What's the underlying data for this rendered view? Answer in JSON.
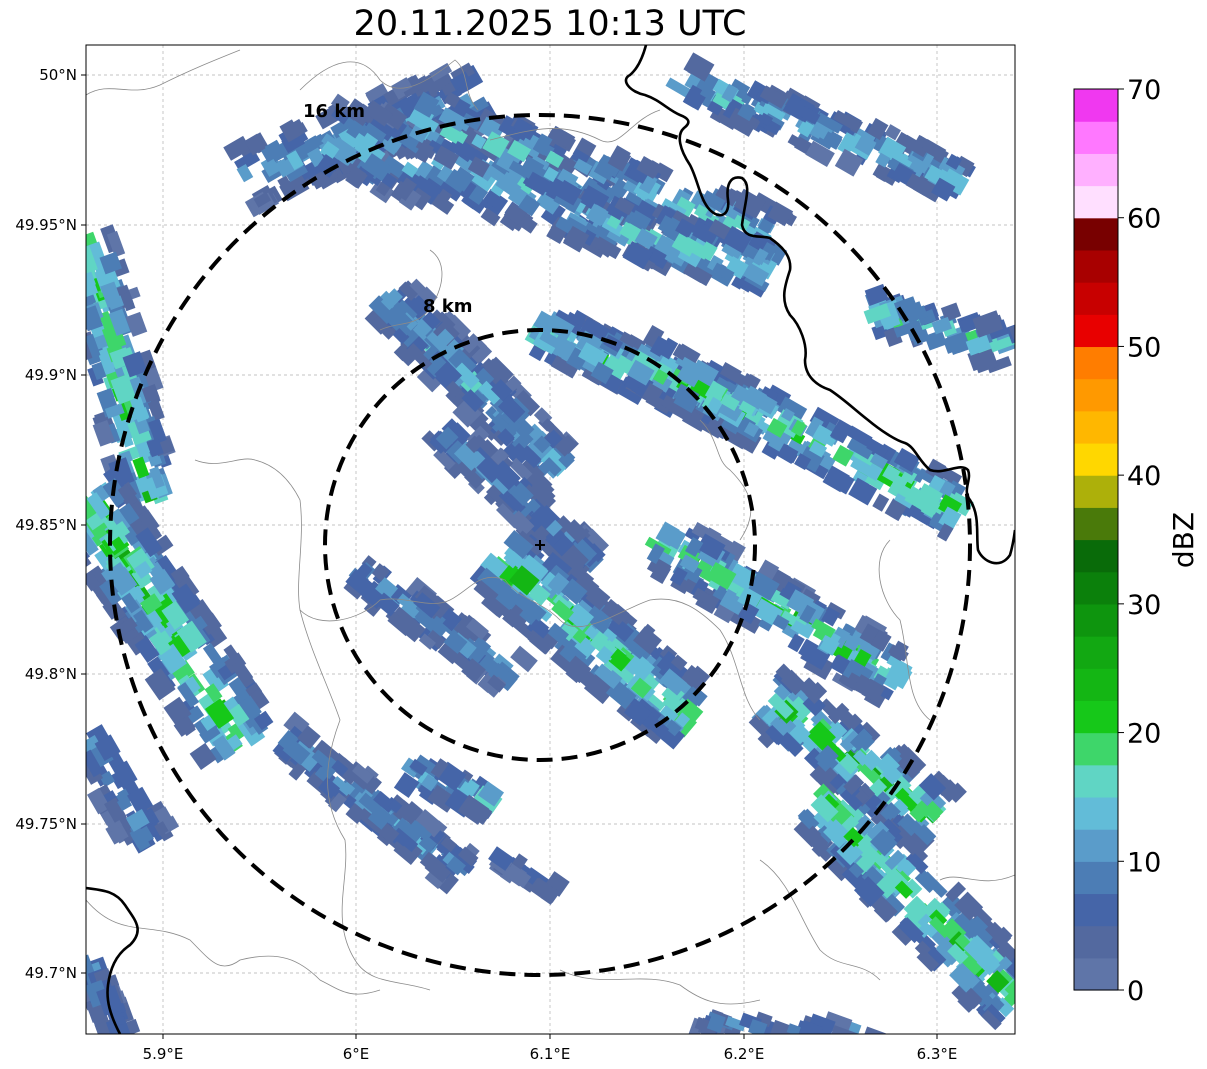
{
  "title": "20.11.2025 10:13 UTC",
  "map": {
    "lon_range": [
      5.86,
      6.34
    ],
    "lat_range": [
      49.68,
      50.01
    ],
    "lon_ticks": [
      "5.9°E",
      "6°E",
      "6.1°E",
      "6.2°E",
      "6.3°E"
    ],
    "lat_ticks": [
      "50°N",
      "49.95°N",
      "49.9°N",
      "49.85°N",
      "49.8°N",
      "49.75°N",
      "49.7°N"
    ],
    "grid": true,
    "radar_site": {
      "lon": 6.095,
      "lat": 49.843
    },
    "range_rings": [
      {
        "label": "8 km",
        "radius_km": 8
      },
      {
        "label": "16 km",
        "radius_km": 16
      }
    ]
  },
  "colorbar": {
    "label": "dBZ",
    "ticks": [
      "0",
      "10",
      "20",
      "30",
      "40",
      "50",
      "60",
      "70"
    ],
    "range": [
      0,
      70
    ],
    "colors": [
      "#5f75a8",
      "#53699f",
      "#4565a8",
      "#4c7db5",
      "#5a9cca",
      "#62bcd8",
      "#60d5c4",
      "#3ed66a",
      "#16c819",
      "#14b614",
      "#12a812",
      "#0e950e",
      "#0b800b",
      "#096b09",
      "#4a7a0a",
      "#adb00a",
      "#ffd700",
      "#ffb700",
      "#ff9900",
      "#ff7d00",
      "#e80000",
      "#c80000",
      "#a80000",
      "#780000",
      "#ffdfff",
      "#ffb0ff",
      "#ff78ff",
      "#f038f0"
    ]
  },
  "echo_areas": [
    {
      "name": "northern-band",
      "lon": [
        5.95,
        6.12
      ],
      "lat": [
        49.92,
        50.0
      ],
      "max_dbz": 20
    },
    {
      "name": "central-band",
      "lon": [
        6.03,
        6.3
      ],
      "lat": [
        49.84,
        49.96
      ],
      "max_dbz": 25
    },
    {
      "name": "western-arc",
      "lon": [
        5.86,
        5.95
      ],
      "lat": [
        49.73,
        49.94
      ],
      "max_dbz": 25
    },
    {
      "name": "southern-cell",
      "lon": [
        6.07,
        6.21
      ],
      "lat": [
        49.78,
        49.84
      ],
      "max_dbz": 22
    },
    {
      "name": "southeast-band",
      "lon": [
        6.21,
        6.34
      ],
      "lat": [
        49.69,
        49.79
      ],
      "max_dbz": 25
    },
    {
      "name": "southwest-streaks",
      "lon": [
        5.95,
        6.1
      ],
      "lat": [
        49.72,
        49.8
      ],
      "max_dbz": 18
    }
  ]
}
